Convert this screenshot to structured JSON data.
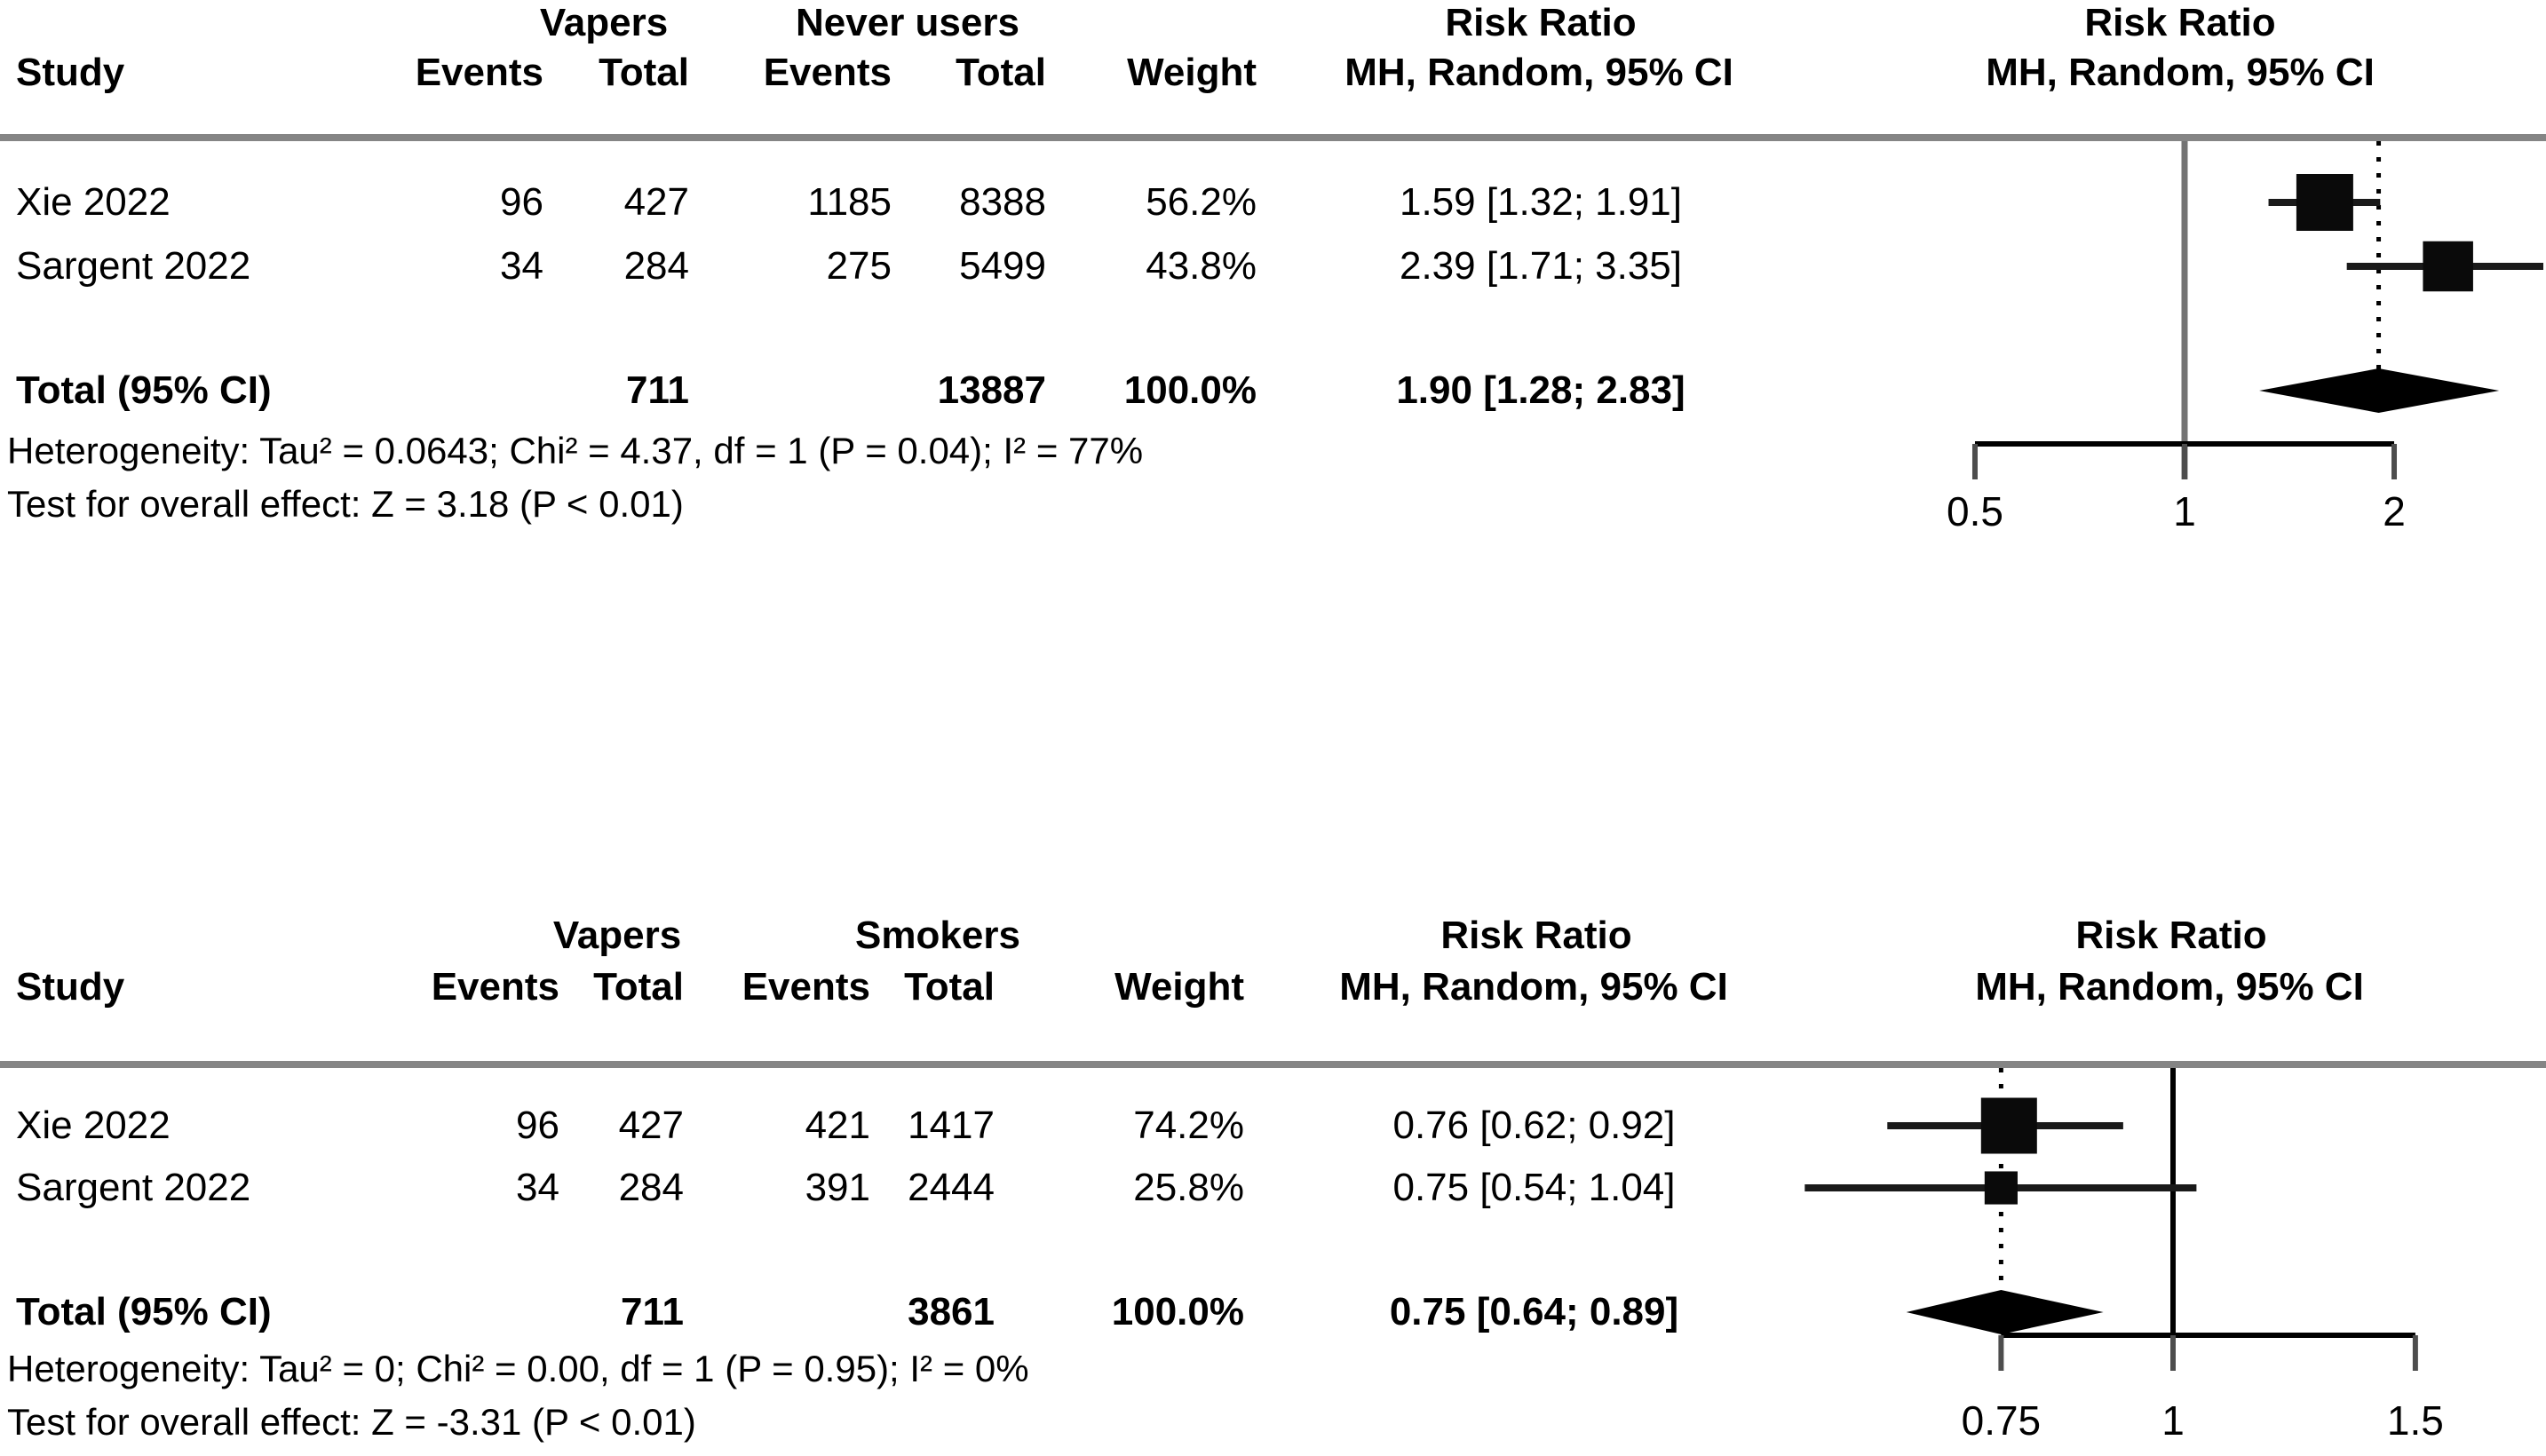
{
  "panels": [
    {
      "group1_header": "Vapers",
      "group2_header": "Never users",
      "effect_header_line1": "Risk Ratio",
      "effect_header_line2": "MH, Random, 95% CI",
      "plot_header_line1": "Risk Ratio",
      "plot_header_line2": "MH, Random, 95% CI",
      "col_headers": {
        "study": "Study",
        "events1": "Events",
        "total1": "Total",
        "events2": "Events",
        "total2": "Total",
        "weight": "Weight"
      },
      "rows": [
        {
          "study": "Xie 2022",
          "e1": "96",
          "t1": "427",
          "e2": "1185",
          "t2": "8388",
          "weight": "56.2%",
          "rr_text": "1.59 [1.32; 1.91]"
        },
        {
          "study": "Sargent 2022",
          "e1": "34",
          "t1": "284",
          "e2": "275",
          "t2": "5499",
          "weight": "43.8%",
          "rr_text": "2.39 [1.71; 3.35]"
        }
      ],
      "total_row": {
        "label": "Total (95% CI)",
        "t1": "711",
        "t2": "13887",
        "weight": "100.0%",
        "rr_text": "1.90 [1.28; 2.83]"
      },
      "het_text": "Heterogeneity: Tau² = 0.0643; Chi² = 4.37, df = 1 (P = 0.04); I² = 77%",
      "test_text": "Test for overall effect: Z = 3.18 (P < 0.01)"
    },
    {
      "group1_header": "Vapers",
      "group2_header": "Smokers",
      "effect_header_line1": "Risk Ratio",
      "effect_header_line2": "MH, Random, 95% CI",
      "plot_header_line1": "Risk Ratio",
      "plot_header_line2": "MH, Random, 95% CI",
      "col_headers": {
        "study": "Study",
        "events1": "Events",
        "total1": "Total",
        "events2": "Events",
        "total2": "Total",
        "weight": "Weight"
      },
      "rows": [
        {
          "study": "Xie 2022",
          "e1": "96",
          "t1": "427",
          "e2": "421",
          "t2": "1417",
          "weight": "74.2%",
          "rr_text": "0.76 [0.62; 0.92]"
        },
        {
          "study": "Sargent 2022",
          "e1": "34",
          "t1": "284",
          "e2": "391",
          "t2": "2444",
          "weight": "25.8%",
          "rr_text": "0.75 [0.54; 1.04]"
        }
      ],
      "total_row": {
        "label": "Total (95% CI)",
        "t1": "711",
        "t2": "3861",
        "weight": "100.0%",
        "rr_text": "0.75 [0.64; 0.89]"
      },
      "het_text": "Heterogeneity: Tau² = 0; Chi² = 0.00, df = 1 (P = 0.95); I² = 0%",
      "test_text": "Test for overall effect: Z = -3.31 (P < 0.01)"
    }
  ],
  "chart_data": [
    {
      "type": "forest",
      "title": "Risk Ratio, Vapers vs Never users",
      "scale": "log",
      "effect_measure": "Risk Ratio (MH, Random, 95% CI)",
      "studies": [
        {
          "name": "Xie 2022",
          "rr": 1.59,
          "ci": [
            1.32,
            1.91
          ],
          "weight": 56.2
        },
        {
          "name": "Sargent 2022",
          "rr": 2.39,
          "ci": [
            1.71,
            3.35
          ],
          "weight": 43.8
        }
      ],
      "pooled": {
        "rr": 1.9,
        "ci": [
          1.28,
          2.83
        ]
      },
      "ref_line": 1,
      "axis_ticks": [
        {
          "v": 0.5,
          "label": "0.5"
        },
        {
          "v": 1,
          "label": "1"
        },
        {
          "v": 2,
          "label": "2"
        }
      ]
    },
    {
      "type": "forest",
      "title": "Risk Ratio, Vapers vs Smokers",
      "scale": "log",
      "effect_measure": "Risk Ratio (MH, Random, 95% CI)",
      "studies": [
        {
          "name": "Xie 2022",
          "rr": 0.76,
          "ci": [
            0.62,
            0.92
          ],
          "weight": 74.2
        },
        {
          "name": "Sargent 2022",
          "rr": 0.75,
          "ci": [
            0.54,
            1.04
          ],
          "weight": 25.8
        }
      ],
      "pooled": {
        "rr": 0.75,
        "ci": [
          0.64,
          0.89
        ]
      },
      "ref_line": 1,
      "axis_ticks": [
        {
          "v": 0.75,
          "label": "0.75"
        },
        {
          "v": 1,
          "label": "1"
        },
        {
          "v": 1.5,
          "label": "1.5"
        }
      ]
    }
  ]
}
